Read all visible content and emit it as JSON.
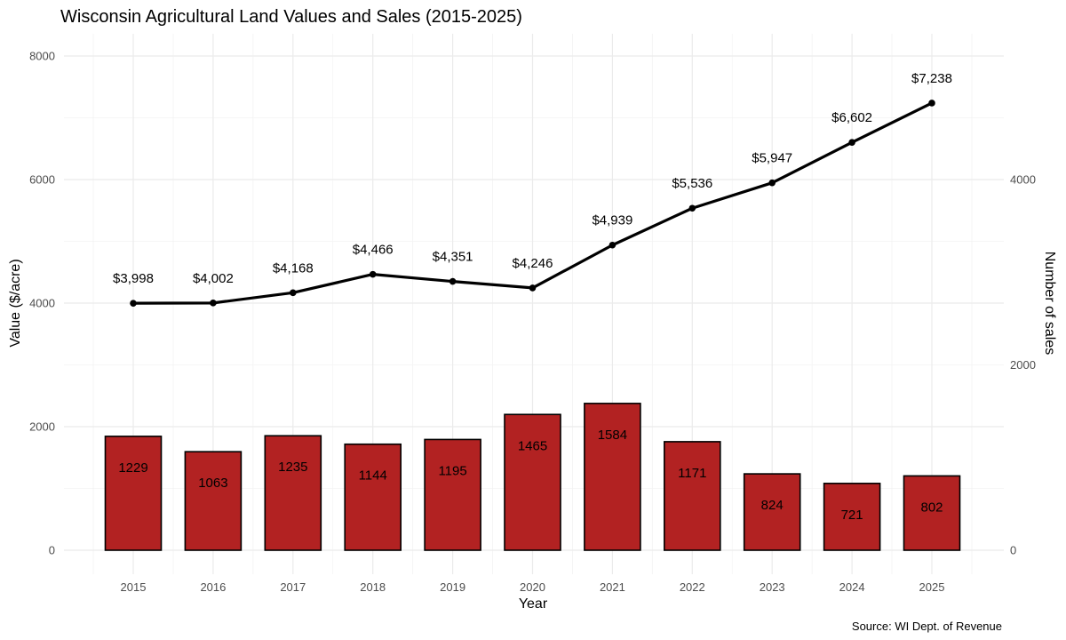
{
  "chart_data": {
    "type": "bar+line",
    "title": "Wisconsin Agricultural Land Values and Sales (2015-2025)",
    "xlabel": "Year",
    "ylabel_left": "Value ($/acre)",
    "ylabel_right": "Number of sales",
    "caption": "Source: WI Dept. of Revenue",
    "categories": [
      "2015",
      "2016",
      "2017",
      "2018",
      "2019",
      "2020",
      "2021",
      "2022",
      "2023",
      "2024",
      "2025"
    ],
    "value_per_acre": [
      3998,
      4002,
      4168,
      4466,
      4351,
      4246,
      4939,
      5536,
      5947,
      6602,
      7238
    ],
    "value_labels": [
      "$3,998",
      "$4,002",
      "$4,168",
      "$4,466",
      "$4,351",
      "$4,246",
      "$4,939",
      "$5,536",
      "$5,947",
      "$6,602",
      "$7,238"
    ],
    "number_of_sales": [
      1229,
      1063,
      1235,
      1144,
      1195,
      1465,
      1584,
      1171,
      824,
      721,
      802
    ],
    "left_axis": {
      "range": [
        0,
        8000
      ],
      "ticks": [
        0,
        2000,
        4000,
        6000,
        8000
      ]
    },
    "right_axis": {
      "range": [
        0,
        5333
      ],
      "ticks": [
        0,
        2000,
        4000
      ]
    },
    "colors": {
      "bar_fill": "#b22222",
      "bar_stroke": "#000000",
      "line": "#000000",
      "grid": "#ebebeb"
    }
  }
}
